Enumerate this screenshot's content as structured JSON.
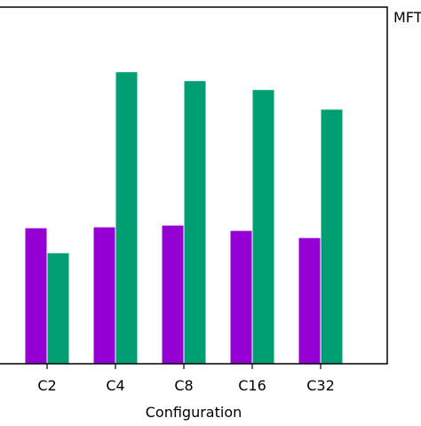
{
  "chart_data": {
    "type": "bar",
    "categories": [
      "C2",
      "C4",
      "C8",
      "C16",
      "C32"
    ],
    "series": [
      {
        "color": "#9400D3",
        "values": [
          152,
          153,
          155,
          149,
          141
        ]
      },
      {
        "color": "#009E73",
        "values": [
          124,
          327,
          317,
          307,
          285
        ]
      }
    ],
    "xlabel": "Configuration",
    "ylim": [
      0,
      400
    ],
    "legend_text": "MFT",
    "legend_position": "right"
  }
}
